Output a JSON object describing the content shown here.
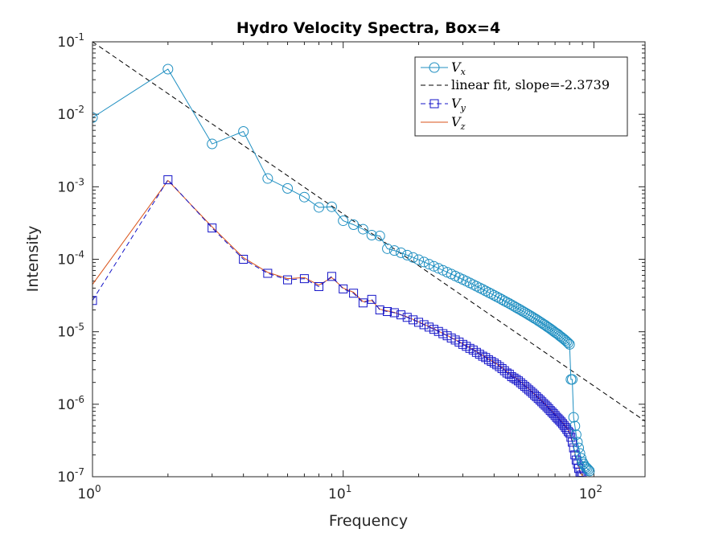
{
  "colors": {
    "vx": "#1f8fc1",
    "vy": "#1414c8",
    "vz": "#d95319",
    "fit": "#000000",
    "axes": "#262626"
  },
  "chart_data": {
    "type": "line",
    "title": "Hydro Velocity Spectra, Box=4",
    "xlabel": "Frequency",
    "ylabel": "Intensity",
    "xscale": "log",
    "yscale": "log",
    "xlim": [
      1,
      160
    ],
    "ylim": [
      1e-07,
      0.1
    ],
    "grid": false,
    "legend_location": "top-right",
    "x_ticks": [
      {
        "base": "10",
        "exp": "0"
      },
      {
        "base": "10",
        "exp": "1"
      },
      {
        "base": "10",
        "exp": "2"
      }
    ],
    "y_ticks": [
      {
        "base": "10",
        "exp": "-7"
      },
      {
        "base": "10",
        "exp": "-6"
      },
      {
        "base": "10",
        "exp": "-5"
      },
      {
        "base": "10",
        "exp": "-4"
      },
      {
        "base": "10",
        "exp": "-3"
      },
      {
        "base": "10",
        "exp": "-2"
      },
      {
        "base": "10",
        "exp": "-1"
      }
    ],
    "fit": {
      "label": "linear fit, slope=-2.3739",
      "slope": -2.3739,
      "intercept_at_1": 0.1
    },
    "series": [
      {
        "name": "V",
        "subscript": "x",
        "marker": "circle",
        "line": "solid",
        "x": [
          1,
          2,
          3,
          4,
          5,
          6,
          7,
          8,
          9,
          10,
          11,
          12,
          13,
          14,
          15,
          16,
          17,
          18,
          19,
          20,
          21,
          22,
          23,
          24,
          25,
          26,
          27,
          28,
          29,
          30,
          31,
          32,
          33,
          34,
          35,
          36,
          37,
          38,
          39,
          40,
          41,
          42,
          43,
          44,
          45,
          46,
          47,
          48,
          49,
          50,
          51,
          52,
          53,
          54,
          55,
          56,
          57,
          58,
          59,
          60,
          61,
          62,
          63,
          64,
          65,
          66,
          67,
          68,
          69,
          70,
          71,
          72,
          73,
          74,
          75,
          76,
          77,
          78,
          79,
          80,
          81,
          82,
          83,
          84,
          85,
          86,
          87,
          88,
          89,
          90,
          91,
          92,
          93,
          94,
          95,
          96
        ],
        "y": [
          0.009,
          0.042,
          0.0039,
          0.0058,
          0.0013,
          0.00095,
          0.00072,
          0.00052,
          0.00053,
          0.00034,
          0.0003,
          0.00026,
          0.000215,
          0.00021,
          0.00014,
          0.000132,
          0.000123,
          0.000114,
          0.000106,
          9.86e-05,
          9.17e-05,
          8.56e-05,
          8.01e-05,
          7.51e-05,
          7.05e-05,
          6.63e-05,
          6.25e-05,
          5.89e-05,
          5.56e-05,
          5.26e-05,
          4.98e-05,
          4.72e-05,
          4.48e-05,
          4.25e-05,
          4.04e-05,
          3.85e-05,
          3.66e-05,
          3.49e-05,
          3.33e-05,
          3.18e-05,
          3.04e-05,
          2.91e-05,
          2.78e-05,
          2.66e-05,
          2.55e-05,
          2.45e-05,
          2.35e-05,
          2.25e-05,
          2.16e-05,
          2.08e-05,
          2e-05,
          1.92e-05,
          1.85e-05,
          1.78e-05,
          1.71e-05,
          1.65e-05,
          1.59e-05,
          1.53e-05,
          1.48e-05,
          1.42e-05,
          1.37e-05,
          1.32e-05,
          1.27e-05,
          1.23e-05,
          1.18e-05,
          1.14e-05,
          1.1e-05,
          1.06e-05,
          1.02e-05,
          9.8e-06,
          9.5e-06,
          9.2e-06,
          8.8e-06,
          8.5e-06,
          8.2e-06,
          7.9e-06,
          7.6e-06,
          7.3e-06,
          7e-06,
          6.7e-06,
          2.2e-06,
          2.2e-06,
          6.6e-07,
          5e-07,
          3.8e-07,
          3e-07,
          2.5e-07,
          2.1e-07,
          1.8e-07,
          1.6e-07,
          1.5e-07,
          1.4e-07,
          1.35e-07,
          1.3e-07,
          1.25e-07,
          1.2e-07
        ]
      },
      {
        "name": "V",
        "subscript": "y",
        "marker": "square",
        "line": "dashed",
        "x": [
          1,
          2,
          3,
          4,
          5,
          6,
          7,
          8,
          9,
          10,
          11,
          12,
          13,
          14,
          15,
          16,
          17,
          18,
          19,
          20,
          21,
          22,
          23,
          24,
          25,
          26,
          27,
          28,
          29,
          30,
          31,
          32,
          33,
          34,
          35,
          36,
          37,
          38,
          39,
          40,
          41,
          42,
          43,
          44,
          45,
          46,
          47,
          48,
          49,
          50,
          51,
          52,
          53,
          54,
          55,
          56,
          57,
          58,
          59,
          60,
          61,
          62,
          63,
          64,
          65,
          66,
          67,
          68,
          69,
          70,
          71,
          72,
          73,
          74,
          75,
          76,
          77,
          78,
          79,
          80,
          81,
          82,
          83,
          84,
          85,
          86,
          87,
          88,
          89,
          90
        ],
        "y": [
          2.7e-05,
          0.00125,
          0.00027,
          0.0001,
          6.4e-05,
          5.2e-05,
          5.4e-05,
          4.2e-05,
          5.8e-05,
          3.9e-05,
          3.4e-05,
          2.5e-05,
          2.8e-05,
          2e-05,
          1.9e-05,
          1.83e-05,
          1.71e-05,
          1.58e-05,
          1.46e-05,
          1.35e-05,
          1.25e-05,
          1.16e-05,
          1.08e-05,
          1.01e-05,
          9.4e-06,
          8.8e-06,
          8.2e-06,
          7.7e-06,
          7.2e-06,
          6.7e-06,
          6.3e-06,
          5.9e-06,
          5.6e-06,
          5.2e-06,
          4.9e-06,
          4.6e-06,
          4.4e-06,
          4.1e-06,
          3.9e-06,
          3.7e-06,
          3.5e-06,
          3.3e-06,
          3.1e-06,
          2.9e-06,
          2.7e-06,
          2.6e-06,
          2.4e-06,
          2.3e-06,
          2.2e-06,
          2.1e-06,
          1.98e-06,
          1.87e-06,
          1.77e-06,
          1.67e-06,
          1.58e-06,
          1.5e-06,
          1.42e-06,
          1.34e-06,
          1.27e-06,
          1.2e-06,
          1.14e-06,
          1.08e-06,
          1.02e-06,
          9.7e-07,
          9.2e-07,
          8.7e-07,
          8.2e-07,
          7.8e-07,
          7.4e-07,
          7e-07,
          6.6e-07,
          6.3e-07,
          6e-07,
          5.7e-07,
          5.4e-07,
          5.1e-07,
          4.8e-07,
          4.5e-07,
          4.2e-07,
          4e-07,
          3.5e-07,
          3e-07,
          2.5e-07,
          2e-07,
          1.7e-07,
          1.5e-07,
          1.3e-07,
          1.15e-07,
          1.05e-07,
          1e-07
        ]
      },
      {
        "name": "V",
        "subscript": "z",
        "marker": "none",
        "line": "solid",
        "x": [
          1,
          2,
          3,
          4,
          5,
          6,
          7,
          8,
          9,
          10,
          11,
          12,
          13,
          14,
          15,
          16,
          17,
          18,
          19,
          20,
          21,
          22,
          23,
          24,
          25,
          26,
          27,
          28,
          29,
          30,
          31,
          32,
          33,
          34,
          35,
          36,
          37,
          38,
          39,
          40,
          41,
          42,
          43,
          44,
          45,
          46,
          47,
          48,
          49,
          50,
          51,
          52,
          53,
          54,
          55,
          56,
          57,
          58,
          59,
          60,
          61,
          62,
          63,
          64,
          65,
          66,
          67,
          68,
          69,
          70,
          71,
          72,
          73,
          74,
          75,
          76,
          77,
          78,
          79,
          80,
          81,
          82,
          83,
          84,
          85,
          86,
          87,
          88,
          89,
          90
        ],
        "y": [
          4.5e-05,
          0.00122,
          0.00028,
          0.000105,
          6.6e-05,
          5.4e-05,
          5.6e-05,
          4.4e-05,
          5.6e-05,
          4e-05,
          3.5e-05,
          2.6e-05,
          2.7e-05,
          2.05e-05,
          1.94e-05,
          1.85e-05,
          1.72e-05,
          1.6e-05,
          1.48e-05,
          1.37e-05,
          1.27e-05,
          1.18e-05,
          1.1e-05,
          1.02e-05,
          9.5e-06,
          8.9e-06,
          8.3e-06,
          7.8e-06,
          7.3e-06,
          6.8e-06,
          6.4e-06,
          6e-06,
          5.7e-06,
          5.3e-06,
          5e-06,
          4.7e-06,
          4.5e-06,
          4.2e-06,
          4e-06,
          3.8e-06,
          3.6e-06,
          3.4e-06,
          3.2e-06,
          3e-06,
          2.8e-06,
          2.7e-06,
          2.5e-06,
          2.4e-06,
          2.3e-06,
          2.2e-06,
          2.05e-06,
          1.94e-06,
          1.83e-06,
          1.73e-06,
          1.63e-06,
          1.55e-06,
          1.46e-06,
          1.38e-06,
          1.31e-06,
          1.24e-06,
          1.18e-06,
          1.12e-06,
          1.06e-06,
          1e-06,
          9.5e-07,
          9e-07,
          8.5e-07,
          8.1e-07,
          7.7e-07,
          7.3e-07,
          6.9e-07,
          6.6e-07,
          6.2e-07,
          5.9e-07,
          5.6e-07,
          5.3e-07,
          5e-07,
          4.7e-07,
          4.4e-07,
          4.1e-07,
          3.6e-07,
          3.1e-07,
          2.6e-07,
          2.1e-07,
          1.8e-07,
          1.6e-07,
          1.4e-07,
          1.2e-07,
          1.1e-07,
          1.02e-07
        ]
      }
    ]
  }
}
